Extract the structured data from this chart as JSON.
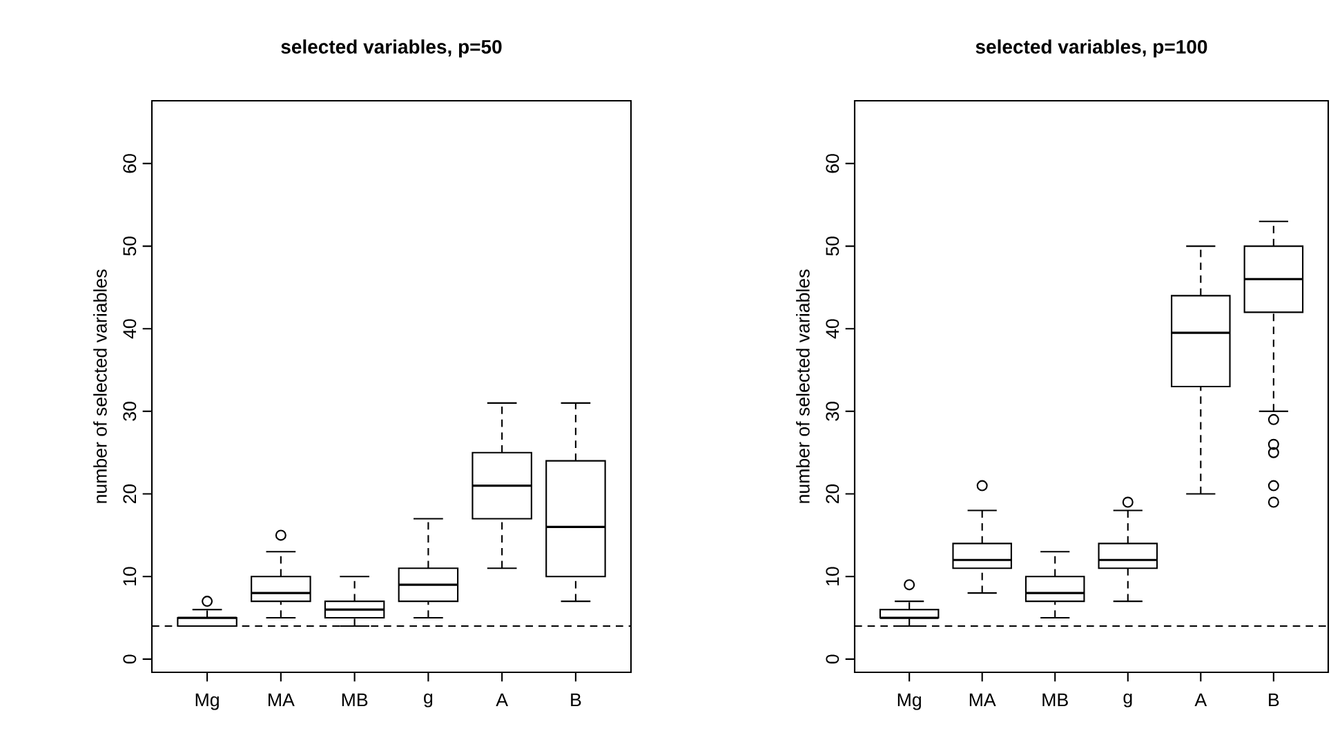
{
  "chart_data": [
    {
      "type": "box",
      "title": "selected variables, p=50",
      "ylabel": "number of selected variables",
      "categories": [
        "Mg",
        "MA",
        "MB",
        "g",
        "A",
        "B"
      ],
      "boxes": [
        {
          "low": 4,
          "q1": 4,
          "median": 5,
          "q3": 5,
          "high": 6,
          "outliers": [
            7
          ]
        },
        {
          "low": 5,
          "q1": 7,
          "median": 8,
          "q3": 10,
          "high": 13,
          "outliers": [
            15
          ]
        },
        {
          "low": 4,
          "q1": 5,
          "median": 6,
          "q3": 7,
          "high": 10
        },
        {
          "low": 5,
          "q1": 7,
          "median": 9,
          "q3": 11,
          "high": 17
        },
        {
          "low": 11,
          "q1": 17,
          "median": 21,
          "q3": 25,
          "high": 31
        },
        {
          "low": 7,
          "q1": 10,
          "median": 16,
          "q3": 24,
          "high": 31
        }
      ],
      "ylim": [
        -1.6,
        67.6
      ],
      "yticks": [
        0,
        10,
        20,
        30,
        40,
        50,
        60
      ],
      "ref_lines": [
        {
          "axis": "y",
          "value": 4,
          "line_style": "dashed"
        }
      ]
    },
    {
      "type": "box",
      "title": "selected variables, p=100",
      "ylabel": "number of selected variables",
      "categories": [
        "Mg",
        "MA",
        "MB",
        "g",
        "A",
        "B"
      ],
      "boxes": [
        {
          "low": 4,
          "q1": 5,
          "median": 5,
          "q3": 6,
          "high": 7,
          "outliers": [
            9
          ]
        },
        {
          "low": 8,
          "q1": 11,
          "median": 12,
          "q3": 14,
          "high": 18,
          "outliers": [
            21
          ]
        },
        {
          "low": 5,
          "q1": 7,
          "median": 8,
          "q3": 10,
          "high": 13
        },
        {
          "low": 7,
          "q1": 11,
          "median": 12,
          "q3": 14,
          "high": 18,
          "outliers": [
            19
          ]
        },
        {
          "low": 20,
          "q1": 33,
          "median": 39.5,
          "q3": 44,
          "high": 50
        },
        {
          "low": 30,
          "q1": 42,
          "median": 46,
          "q3": 50,
          "high": 53,
          "outliers": [
            29,
            26,
            25,
            21,
            19
          ]
        }
      ],
      "ylim": [
        -1.6,
        67.6
      ],
      "yticks": [
        0,
        10,
        20,
        30,
        40,
        50,
        60
      ],
      "ref_lines": [
        {
          "axis": "y",
          "value": 4,
          "line_style": "dashed"
        }
      ]
    }
  ]
}
